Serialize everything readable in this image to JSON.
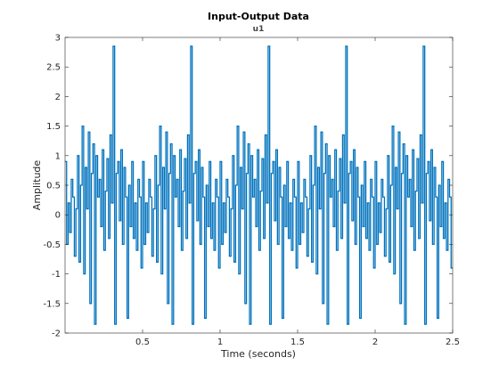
{
  "chart_data": {
    "type": "line",
    "step": true,
    "title": "Input-Output Data",
    "subtitle": "u1",
    "xlabel": "Time (seconds)",
    "ylabel": "Amplitude",
    "xlim": [
      0,
      2.5
    ],
    "ylim": [
      -2,
      3
    ],
    "xticks": [
      0.5,
      1,
      1.5,
      2,
      2.5
    ],
    "xtick_labels": [
      "0.5",
      "1",
      "1.5",
      "2",
      "2.5"
    ],
    "yticks": [
      -2,
      -1.5,
      -1,
      -0.5,
      0,
      0.5,
      1,
      1.5,
      2,
      2.5,
      3
    ],
    "ytick_labels": [
      "-2",
      "-1.5",
      "-1",
      "-0.5",
      "0",
      "0.5",
      "1",
      "1.5",
      "2",
      "2.5",
      "3"
    ],
    "grid": false,
    "line_color": "#0072BD",
    "sample_time": 0.01,
    "period_samples": 50,
    "period_values": [
      0.9,
      -0.5,
      0.2,
      -0.3,
      0.6,
      0.3,
      -0.7,
      0.1,
      1.0,
      -0.8,
      0.5,
      1.5,
      -1.0,
      0.8,
      0.1,
      1.4,
      -1.5,
      0.7,
      1.2,
      -1.85,
      1.0,
      0.3,
      0.6,
      -0.2,
      1.1,
      -0.6,
      0.4,
      0.95,
      -0.4,
      1.35,
      0.2,
      2.85,
      -1.85,
      0.7,
      0.9,
      -0.1,
      1.1,
      -0.5,
      0.8,
      0.3,
      -1.75,
      0.5,
      -0.2,
      0.9,
      -0.4,
      0.2,
      -0.6,
      0.6,
      0.3,
      -0.9
    ]
  }
}
